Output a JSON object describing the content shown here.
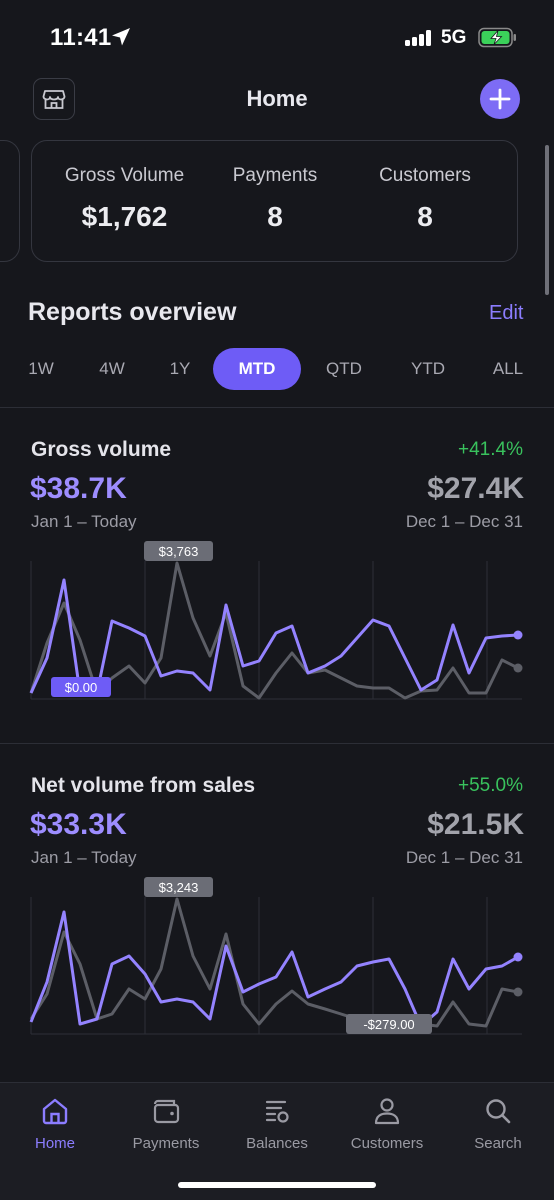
{
  "status_bar": {
    "time": "11:41",
    "network": "5G"
  },
  "header": {
    "title": "Home"
  },
  "summary": [
    {
      "label": "Gross Volume",
      "value": "$1,762"
    },
    {
      "label": "Payments",
      "value": "8"
    },
    {
      "label": "Customers",
      "value": "8"
    }
  ],
  "reports": {
    "title": "Reports overview",
    "edit_label": "Edit",
    "ranges": [
      "1W",
      "4W",
      "1Y",
      "MTD",
      "QTD",
      "YTD",
      "ALL"
    ],
    "active_range": "MTD"
  },
  "cards": [
    {
      "title": "Gross volume",
      "change": "+41.4%",
      "value": "$38.7K",
      "prev_value": "$27.4K",
      "range": "Jan 1 – Today",
      "prev_range": "Dec 1 – Dec 31",
      "max_label": "$3,763",
      "min_label": "$0.00"
    },
    {
      "title": "Net volume from sales",
      "change": "+55.0%",
      "value": "$33.3K",
      "prev_value": "$21.5K",
      "range": "Jan 1 – Today",
      "prev_range": "Dec 1 – Dec 31",
      "max_label": "$3,243",
      "min_label": "-$279.00"
    }
  ],
  "tabs": [
    {
      "label": "Home",
      "icon": "home-icon",
      "active": true
    },
    {
      "label": "Payments",
      "icon": "wallet-icon",
      "active": false
    },
    {
      "label": "Balances",
      "icon": "balances-icon",
      "active": false
    },
    {
      "label": "Customers",
      "icon": "person-icon",
      "active": false
    },
    {
      "label": "Search",
      "icon": "search-icon",
      "active": false
    }
  ],
  "colors": {
    "accent": "#7d6cf5",
    "current_series": "#9483ff",
    "previous_series": "#5c5e66",
    "positive": "#39c25d"
  }
}
